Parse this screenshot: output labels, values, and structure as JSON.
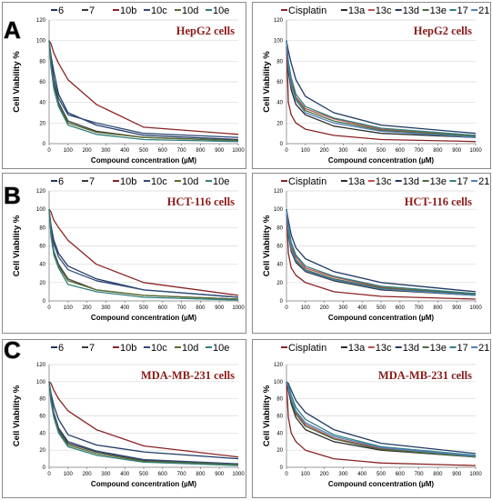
{
  "row_letters": [
    "A",
    "B",
    "C"
  ],
  "chart_data": [
    {
      "type": "line",
      "title": "HepG2 cells",
      "xlabel": "Compound concentration (µM)",
      "ylabel": "Cell Viability %",
      "x": [
        0,
        10,
        25,
        50,
        100,
        250,
        500,
        1000
      ],
      "xticks": [
        0,
        100,
        200,
        300,
        400,
        500,
        600,
        700,
        800,
        900,
        1000
      ],
      "xlim": [
        0,
        1000
      ],
      "yticks": [
        0,
        20,
        40,
        60,
        80,
        100,
        120
      ],
      "ylim": [
        0,
        120
      ],
      "grid": true,
      "legend_position": "top",
      "series": [
        {
          "name": "6",
          "color": "#1f3864",
          "values": [
            100,
            85,
            70,
            48,
            30,
            18,
            8,
            4
          ]
        },
        {
          "name": "7",
          "color": "#3a3a3a",
          "values": [
            100,
            78,
            58,
            40,
            22,
            12,
            6,
            3
          ]
        },
        {
          "name": "10b",
          "color": "#8b2323",
          "values": [
            100,
            97,
            88,
            78,
            62,
            38,
            16,
            9
          ]
        },
        {
          "name": "10c",
          "color": "#2e4a7a",
          "values": [
            100,
            82,
            62,
            44,
            28,
            20,
            10,
            6
          ]
        },
        {
          "name": "10d",
          "color": "#5c6b2e",
          "values": [
            100,
            75,
            55,
            38,
            20,
            11,
            6,
            3
          ]
        },
        {
          "name": "10e",
          "color": "#2f7f7f",
          "values": [
            100,
            74,
            53,
            36,
            18,
            9,
            4,
            2
          ]
        }
      ]
    },
    {
      "type": "line",
      "title": "HepG2 cells",
      "xlabel": "Compound concentration (µM)",
      "ylabel": "Cell Viability %",
      "x": [
        0,
        10,
        25,
        50,
        100,
        250,
        500,
        1000
      ],
      "xticks": [
        0,
        100,
        200,
        300,
        400,
        500,
        600,
        700,
        800,
        900,
        1000
      ],
      "xlim": [
        0,
        1000
      ],
      "yticks": [
        0,
        20,
        40,
        60,
        80,
        100,
        120
      ],
      "ylim": [
        0,
        120
      ],
      "grid": true,
      "legend_position": "top",
      "series": [
        {
          "name": "Cisplatin",
          "color": "#8b2323",
          "values": [
            100,
            40,
            28,
            20,
            14,
            8,
            4,
            2
          ]
        },
        {
          "name": "13a",
          "color": "#2b2b2b",
          "values": [
            100,
            70,
            52,
            38,
            28,
            17,
            10,
            6
          ]
        },
        {
          "name": "13c",
          "color": "#c0504d",
          "values": [
            100,
            78,
            60,
            45,
            34,
            24,
            14,
            8
          ]
        },
        {
          "name": "13d",
          "color": "#1f3864",
          "values": [
            100,
            90,
            78,
            62,
            46,
            30,
            18,
            10
          ]
        },
        {
          "name": "13e",
          "color": "#4a6b3a",
          "values": [
            100,
            76,
            58,
            44,
            32,
            22,
            13,
            7
          ]
        },
        {
          "name": "17",
          "color": "#2f7f7f",
          "values": [
            100,
            80,
            64,
            48,
            36,
            25,
            15,
            8
          ]
        },
        {
          "name": "21",
          "color": "#4f81bd",
          "values": [
            100,
            74,
            56,
            42,
            30,
            20,
            12,
            6
          ]
        }
      ]
    },
    {
      "type": "line",
      "title": "HCT-116 cells",
      "xlabel": "Compound concentration (µM)",
      "ylabel": "Cell Viability %",
      "x": [
        0,
        10,
        25,
        50,
        100,
        250,
        500,
        1000
      ],
      "xticks": [
        0,
        100,
        200,
        300,
        400,
        500,
        600,
        700,
        800,
        900,
        1000
      ],
      "xlim": [
        0,
        1000
      ],
      "yticks": [
        0,
        20,
        40,
        60,
        80,
        100,
        120
      ],
      "ylim": [
        0,
        120
      ],
      "grid": true,
      "legend_position": "top",
      "series": [
        {
          "name": "6",
          "color": "#1f3864",
          "values": [
            100,
            82,
            66,
            52,
            38,
            24,
            12,
            4
          ]
        },
        {
          "name": "7",
          "color": "#3a3a3a",
          "values": [
            100,
            74,
            54,
            40,
            24,
            12,
            6,
            2
          ]
        },
        {
          "name": "10b",
          "color": "#8b2323",
          "values": [
            100,
            97,
            88,
            80,
            66,
            40,
            20,
            6
          ]
        },
        {
          "name": "10c",
          "color": "#2e4a7a",
          "values": [
            100,
            80,
            62,
            48,
            34,
            22,
            12,
            4
          ]
        },
        {
          "name": "10d",
          "color": "#5c6b2e",
          "values": [
            100,
            72,
            52,
            38,
            22,
            12,
            6,
            2
          ]
        },
        {
          "name": "10e",
          "color": "#2f7f7f",
          "values": [
            100,
            70,
            50,
            36,
            18,
            10,
            4,
            1
          ]
        }
      ]
    },
    {
      "type": "line",
      "title": "HCT-116 cells",
      "xlabel": "Compound concentration (µM)",
      "ylabel": "Cell Viability %",
      "x": [
        0,
        10,
        25,
        50,
        100,
        250,
        500,
        1000
      ],
      "xticks": [
        0,
        100,
        200,
        300,
        400,
        500,
        600,
        700,
        800,
        900,
        1000
      ],
      "xlim": [
        0,
        1000
      ],
      "yticks": [
        0,
        20,
        40,
        60,
        80,
        100,
        120
      ],
      "ylim": [
        0,
        120
      ],
      "grid": true,
      "legend_position": "top",
      "series": [
        {
          "name": "Cisplatin",
          "color": "#8b2323",
          "values": [
            100,
            52,
            36,
            28,
            20,
            10,
            5,
            2
          ]
        },
        {
          "name": "13a",
          "color": "#2b2b2b",
          "values": [
            100,
            72,
            54,
            42,
            32,
            22,
            12,
            6
          ]
        },
        {
          "name": "13c",
          "color": "#c0504d",
          "values": [
            100,
            78,
            60,
            48,
            36,
            26,
            15,
            8
          ]
        },
        {
          "name": "13d",
          "color": "#1f3864",
          "values": [
            100,
            88,
            72,
            58,
            46,
            32,
            20,
            10
          ]
        },
        {
          "name": "13e",
          "color": "#4a6b3a",
          "values": [
            100,
            76,
            58,
            45,
            34,
            24,
            14,
            7
          ]
        },
        {
          "name": "17",
          "color": "#2f7f7f",
          "values": [
            100,
            80,
            64,
            50,
            38,
            27,
            16,
            8
          ]
        },
        {
          "name": "21",
          "color": "#4f81bd",
          "values": [
            100,
            74,
            56,
            44,
            33,
            23,
            13,
            6
          ]
        }
      ]
    },
    {
      "type": "line",
      "title": "MDA-MB-231 cells",
      "xlabel": "Compound concentration (µM)",
      "ylabel": "Cell Viability %",
      "x": [
        0,
        10,
        25,
        50,
        100,
        250,
        500,
        1000
      ],
      "xticks": [
        0,
        100,
        200,
        300,
        400,
        500,
        600,
        700,
        800,
        900,
        1000
      ],
      "xlim": [
        0,
        1000
      ],
      "yticks": [
        0,
        20,
        40,
        60,
        80,
        100,
        120
      ],
      "ylim": [
        0,
        120
      ],
      "grid": true,
      "legend_position": "top",
      "series": [
        {
          "name": "6",
          "color": "#1f3864",
          "values": [
            100,
            86,
            72,
            56,
            38,
            26,
            18,
            10
          ]
        },
        {
          "name": "7",
          "color": "#3a3a3a",
          "values": [
            100,
            80,
            62,
            44,
            28,
            18,
            8,
            3
          ]
        },
        {
          "name": "10b",
          "color": "#8b2323",
          "values": [
            100,
            98,
            90,
            80,
            66,
            44,
            25,
            12
          ]
        },
        {
          "name": "10c",
          "color": "#2e4a7a",
          "values": [
            100,
            82,
            64,
            46,
            30,
            19,
            9,
            4
          ]
        },
        {
          "name": "10d",
          "color": "#5c6b2e",
          "values": [
            100,
            78,
            60,
            42,
            26,
            16,
            7,
            3
          ]
        },
        {
          "name": "10e",
          "color": "#2f7f7f",
          "values": [
            100,
            76,
            58,
            40,
            24,
            14,
            6,
            2
          ]
        }
      ]
    },
    {
      "type": "line",
      "title": "MDA-MB-231 cells",
      "xlabel": "Compound concentration (µM)",
      "ylabel": "Cell Viability %",
      "x": [
        0,
        10,
        25,
        50,
        100,
        250,
        500,
        1000
      ],
      "xticks": [
        0,
        100,
        200,
        300,
        400,
        500,
        600,
        700,
        800,
        900,
        1000
      ],
      "xlim": [
        0,
        1000
      ],
      "yticks": [
        0,
        20,
        40,
        60,
        80,
        100,
        120
      ],
      "ylim": [
        0,
        120
      ],
      "grid": true,
      "legend_position": "top",
      "series": [
        {
          "name": "Cisplatin",
          "color": "#8b2323",
          "values": [
            100,
            58,
            40,
            30,
            20,
            10,
            5,
            2
          ]
        },
        {
          "name": "13a",
          "color": "#2b2b2b",
          "values": [
            100,
            90,
            74,
            58,
            44,
            30,
            20,
            12
          ]
        },
        {
          "name": "13c",
          "color": "#c0504d",
          "values": [
            100,
            94,
            80,
            64,
            50,
            34,
            22,
            13
          ]
        },
        {
          "name": "13d",
          "color": "#1f3864",
          "values": [
            100,
            98,
            90,
            78,
            64,
            44,
            28,
            16
          ]
        },
        {
          "name": "13e",
          "color": "#4a6b3a",
          "values": [
            100,
            92,
            78,
            62,
            48,
            33,
            21,
            12
          ]
        },
        {
          "name": "17",
          "color": "#2f7f7f",
          "values": [
            100,
            96,
            84,
            70,
            56,
            38,
            24,
            14
          ]
        },
        {
          "name": "21",
          "color": "#4f81bd",
          "values": [
            100,
            93,
            80,
            66,
            52,
            36,
            23,
            13
          ]
        }
      ]
    }
  ]
}
